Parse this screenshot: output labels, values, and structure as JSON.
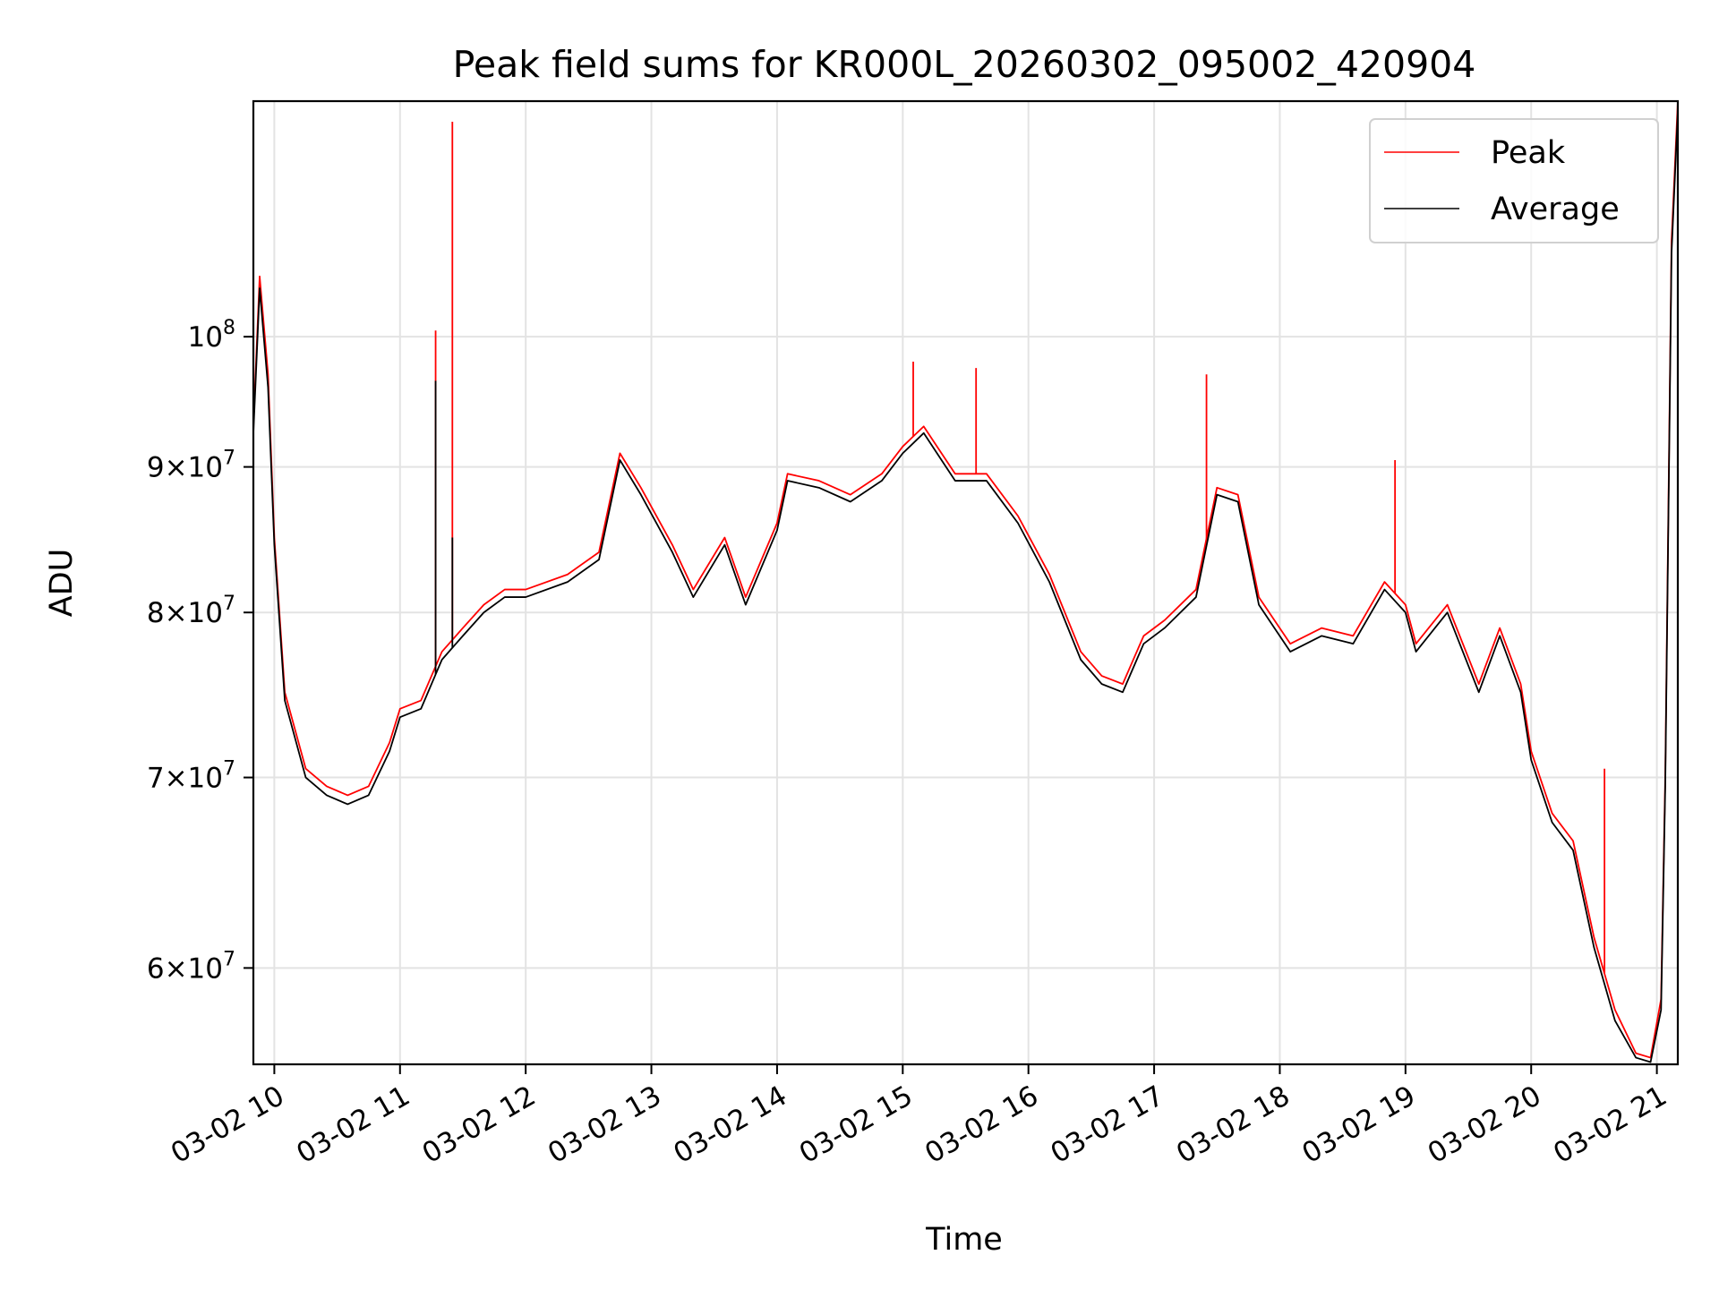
{
  "chart_data": {
    "type": "line",
    "title": "Peak field sums for KR000L_20260302_095002_420904",
    "xlabel": "Time",
    "ylabel": "ADU",
    "y_scale": "log",
    "grid": true,
    "legend_position": "upper right",
    "xlim": [
      "2026-03-02 09:50",
      "2026-03-02 21:10"
    ],
    "ylim": [
      55500000,
      121000000
    ],
    "x_ticks": [
      {
        "value": "2026-03-02 10:00",
        "label": "03-02 10"
      },
      {
        "value": "2026-03-02 11:00",
        "label": "03-02 11"
      },
      {
        "value": "2026-03-02 12:00",
        "label": "03-02 12"
      },
      {
        "value": "2026-03-02 13:00",
        "label": "03-02 13"
      },
      {
        "value": "2026-03-02 14:00",
        "label": "03-02 14"
      },
      {
        "value": "2026-03-02 15:00",
        "label": "03-02 15"
      },
      {
        "value": "2026-03-02 16:00",
        "label": "03-02 16"
      },
      {
        "value": "2026-03-02 17:00",
        "label": "03-02 17"
      },
      {
        "value": "2026-03-02 18:00",
        "label": "03-02 18"
      },
      {
        "value": "2026-03-02 19:00",
        "label": "03-02 19"
      },
      {
        "value": "2026-03-02 20:00",
        "label": "03-02 20"
      },
      {
        "value": "2026-03-02 21:00",
        "label": "03-02 21"
      }
    ],
    "y_ticks": [
      {
        "value": 60000000,
        "mantissa": "6",
        "exponent": "7"
      },
      {
        "value": 70000000,
        "mantissa": "7",
        "exponent": "7"
      },
      {
        "value": 80000000,
        "mantissa": "8",
        "exponent": "7"
      },
      {
        "value": 90000000,
        "mantissa": "9",
        "exponent": "7"
      },
      {
        "value": 100000000,
        "mantissa": "",
        "exponent": "8"
      }
    ],
    "y_tick_base": "10",
    "series": [
      {
        "name": "Peak",
        "color": "#ff0000",
        "points": [
          [
            "2026-03-02 09:50",
            93000000
          ],
          [
            "2026-03-02 09:53",
            105000000
          ],
          [
            "2026-03-02 09:57",
            97000000
          ],
          [
            "2026-03-02 10:00",
            85000000
          ],
          [
            "2026-03-02 10:05",
            75000000
          ],
          [
            "2026-03-02 10:15",
            70500000
          ],
          [
            "2026-03-02 10:25",
            69500000
          ],
          [
            "2026-03-02 10:35",
            69000000
          ],
          [
            "2026-03-02 10:45",
            69500000
          ],
          [
            "2026-03-02 10:55",
            72000000
          ],
          [
            "2026-03-02 11:00",
            74000000
          ],
          [
            "2026-03-02 11:10",
            74500000
          ],
          [
            "2026-03-02 11:20",
            77500000
          ],
          [
            "2026-03-02 11:30",
            79000000
          ],
          [
            "2026-03-02 11:40",
            80500000
          ],
          [
            "2026-03-02 11:50",
            81500000
          ],
          [
            "2026-03-02 12:00",
            81500000
          ],
          [
            "2026-03-02 12:20",
            82500000
          ],
          [
            "2026-03-02 12:35",
            84000000
          ],
          [
            "2026-03-02 12:45",
            91000000
          ],
          [
            "2026-03-02 12:55",
            88500000
          ],
          [
            "2026-03-02 13:10",
            84500000
          ],
          [
            "2026-03-02 13:20",
            81500000
          ],
          [
            "2026-03-02 13:35",
            85000000
          ],
          [
            "2026-03-02 13:45",
            81000000
          ],
          [
            "2026-03-02 14:00",
            86000000
          ],
          [
            "2026-03-02 14:05",
            89500000
          ],
          [
            "2026-03-02 14:20",
            89000000
          ],
          [
            "2026-03-02 14:35",
            88000000
          ],
          [
            "2026-03-02 14:50",
            89500000
          ],
          [
            "2026-03-02 15:00",
            91500000
          ],
          [
            "2026-03-02 15:10",
            93000000
          ],
          [
            "2026-03-02 15:25",
            89500000
          ],
          [
            "2026-03-02 15:40",
            89500000
          ],
          [
            "2026-03-02 15:55",
            86500000
          ],
          [
            "2026-03-02 16:10",
            82500000
          ],
          [
            "2026-03-02 16:25",
            77500000
          ],
          [
            "2026-03-02 16:35",
            76000000
          ],
          [
            "2026-03-02 16:45",
            75500000
          ],
          [
            "2026-03-02 16:55",
            78500000
          ],
          [
            "2026-03-02 17:05",
            79500000
          ],
          [
            "2026-03-02 17:20",
            81500000
          ],
          [
            "2026-03-02 17:30",
            88500000
          ],
          [
            "2026-03-02 17:40",
            88000000
          ],
          [
            "2026-03-02 17:50",
            81000000
          ],
          [
            "2026-03-02 18:05",
            78000000
          ],
          [
            "2026-03-02 18:20",
            79000000
          ],
          [
            "2026-03-02 18:35",
            78500000
          ],
          [
            "2026-03-02 18:50",
            82000000
          ],
          [
            "2026-03-02 19:00",
            80500000
          ],
          [
            "2026-03-02 19:05",
            78000000
          ],
          [
            "2026-03-02 19:20",
            80500000
          ],
          [
            "2026-03-02 19:35",
            75500000
          ],
          [
            "2026-03-02 19:45",
            79000000
          ],
          [
            "2026-03-02 19:55",
            75500000
          ],
          [
            "2026-03-02 20:00",
            71500000
          ],
          [
            "2026-03-02 20:10",
            68000000
          ],
          [
            "2026-03-02 20:20",
            66500000
          ],
          [
            "2026-03-02 20:30",
            61500000
          ],
          [
            "2026-03-02 20:40",
            58000000
          ],
          [
            "2026-03-02 20:50",
            56000000
          ],
          [
            "2026-03-02 20:57",
            55800000
          ],
          [
            "2026-03-02 21:02",
            58500000
          ],
          [
            "2026-03-02 21:04",
            70000000
          ],
          [
            "2026-03-02 21:07",
            108000000
          ],
          [
            "2026-03-02 21:10",
            121000000
          ]
        ],
        "spikes": [
          [
            "2026-03-02 11:17",
            100500000
          ],
          [
            "2026-03-02 11:25",
            119000000
          ],
          [
            "2026-03-02 15:35",
            97500000
          ],
          [
            "2026-03-02 15:05",
            98000000
          ],
          [
            "2026-03-02 17:25",
            97000000
          ],
          [
            "2026-03-02 18:55",
            90500000
          ],
          [
            "2026-03-02 20:35",
            70500000
          ]
        ]
      },
      {
        "name": "Average",
        "color": "#000000",
        "points": [
          [
            "2026-03-02 09:50",
            92500000
          ],
          [
            "2026-03-02 09:53",
            104000000
          ],
          [
            "2026-03-02 09:57",
            96000000
          ],
          [
            "2026-03-02 10:00",
            84500000
          ],
          [
            "2026-03-02 10:05",
            74500000
          ],
          [
            "2026-03-02 10:15",
            70000000
          ],
          [
            "2026-03-02 10:25",
            69000000
          ],
          [
            "2026-03-02 10:35",
            68500000
          ],
          [
            "2026-03-02 10:45",
            69000000
          ],
          [
            "2026-03-02 10:55",
            71500000
          ],
          [
            "2026-03-02 11:00",
            73500000
          ],
          [
            "2026-03-02 11:10",
            74000000
          ],
          [
            "2026-03-02 11:20",
            77000000
          ],
          [
            "2026-03-02 11:30",
            78500000
          ],
          [
            "2026-03-02 11:40",
            80000000
          ],
          [
            "2026-03-02 11:50",
            81000000
          ],
          [
            "2026-03-02 12:00",
            81000000
          ],
          [
            "2026-03-02 12:20",
            82000000
          ],
          [
            "2026-03-02 12:35",
            83500000
          ],
          [
            "2026-03-02 12:45",
            90500000
          ],
          [
            "2026-03-02 12:55",
            88000000
          ],
          [
            "2026-03-02 13:10",
            84000000
          ],
          [
            "2026-03-02 13:20",
            81000000
          ],
          [
            "2026-03-02 13:35",
            84500000
          ],
          [
            "2026-03-02 13:45",
            80500000
          ],
          [
            "2026-03-02 14:00",
            85500000
          ],
          [
            "2026-03-02 14:05",
            89000000
          ],
          [
            "2026-03-02 14:20",
            88500000
          ],
          [
            "2026-03-02 14:35",
            87500000
          ],
          [
            "2026-03-02 14:50",
            89000000
          ],
          [
            "2026-03-02 15:00",
            91000000
          ],
          [
            "2026-03-02 15:10",
            92500000
          ],
          [
            "2026-03-02 15:25",
            89000000
          ],
          [
            "2026-03-02 15:40",
            89000000
          ],
          [
            "2026-03-02 15:55",
            86000000
          ],
          [
            "2026-03-02 16:10",
            82000000
          ],
          [
            "2026-03-02 16:25",
            77000000
          ],
          [
            "2026-03-02 16:35",
            75500000
          ],
          [
            "2026-03-02 16:45",
            75000000
          ],
          [
            "2026-03-02 16:55",
            78000000
          ],
          [
            "2026-03-02 17:05",
            79000000
          ],
          [
            "2026-03-02 17:20",
            81000000
          ],
          [
            "2026-03-02 17:30",
            88000000
          ],
          [
            "2026-03-02 17:40",
            87500000
          ],
          [
            "2026-03-02 17:50",
            80500000
          ],
          [
            "2026-03-02 18:05",
            77500000
          ],
          [
            "2026-03-02 18:20",
            78500000
          ],
          [
            "2026-03-02 18:35",
            78000000
          ],
          [
            "2026-03-02 18:50",
            81500000
          ],
          [
            "2026-03-02 19:00",
            80000000
          ],
          [
            "2026-03-02 19:05",
            77500000
          ],
          [
            "2026-03-02 19:20",
            80000000
          ],
          [
            "2026-03-02 19:35",
            75000000
          ],
          [
            "2026-03-02 19:45",
            78500000
          ],
          [
            "2026-03-02 19:55",
            75000000
          ],
          [
            "2026-03-02 20:00",
            71000000
          ],
          [
            "2026-03-02 20:10",
            67500000
          ],
          [
            "2026-03-02 20:20",
            66000000
          ],
          [
            "2026-03-02 20:30",
            61000000
          ],
          [
            "2026-03-02 20:40",
            57500000
          ],
          [
            "2026-03-02 20:50",
            55800000
          ],
          [
            "2026-03-02 20:57",
            55600000
          ],
          [
            "2026-03-02 21:02",
            58000000
          ],
          [
            "2026-03-02 21:04",
            69500000
          ],
          [
            "2026-03-02 21:07",
            107000000
          ],
          [
            "2026-03-02 21:10",
            120000000
          ]
        ],
        "spikes": [
          [
            "2026-03-02 11:17",
            96500000
          ],
          [
            "2026-03-02 11:25",
            85000000
          ]
        ]
      }
    ]
  }
}
